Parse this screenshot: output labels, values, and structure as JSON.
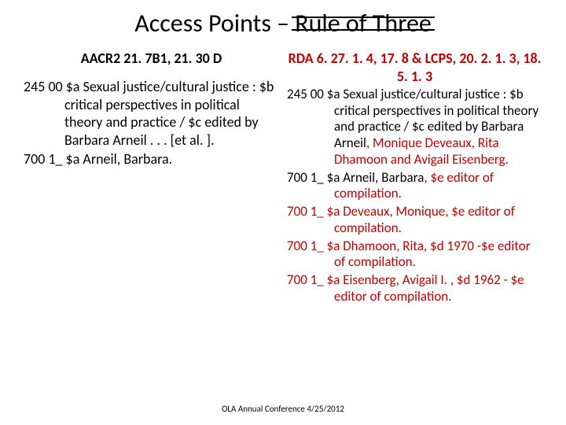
{
  "title_prefix": "Access Points – ",
  "title_struck": "Rule of Three",
  "left": {
    "heading": "AACR2  21. 7B1, 21. 30 D",
    "entries": [
      "245 00  $a Sexual justice/cultural justice : $b critical perspectives in political theory and practice / $c edited by Barbara Arneil . . . [et al. ].",
      "700 1_  $a Arneil, Barbara."
    ]
  },
  "right": {
    "heading": "RDA  6. 27. 1. 4, 17. 8 & LCPS, 20. 2. 1. 3, 18. 5. 1. 3",
    "entries": [
      [
        {
          "t": "245 00  $a Sexual justice/cultural justice : $b critical perspectives in political theory and practice / $c edited by Barbara Arneil",
          "c": "black"
        },
        {
          "t": ", Monique Deveaux, Rita Dhamoon and Avigail Eisenberg.",
          "c": "red"
        }
      ],
      [
        {
          "t": "700 1_  $a Arneil, Barbara",
          "c": "black"
        },
        {
          "t": ", $e editor of compilation.",
          "c": "red"
        }
      ],
      [
        {
          "t": "700 1_  $a Deveaux, Monique, $e editor of compilation.",
          "c": "red"
        }
      ],
      [
        {
          "t": "700 1_  $a Dhamoon, Rita, $d 1970 -$e editor of compilation.",
          "c": "red"
        }
      ],
      [
        {
          "t": "700 1_  $a Eisenberg, Avigail I. , $d 1962 - $e editor of compilation.",
          "c": "red"
        }
      ]
    ]
  },
  "footer": "OLA Annual Conference 4/25/2012",
  "colors": {
    "red": "#c00000",
    "black": "#000000",
    "background": "#ffffff"
  }
}
